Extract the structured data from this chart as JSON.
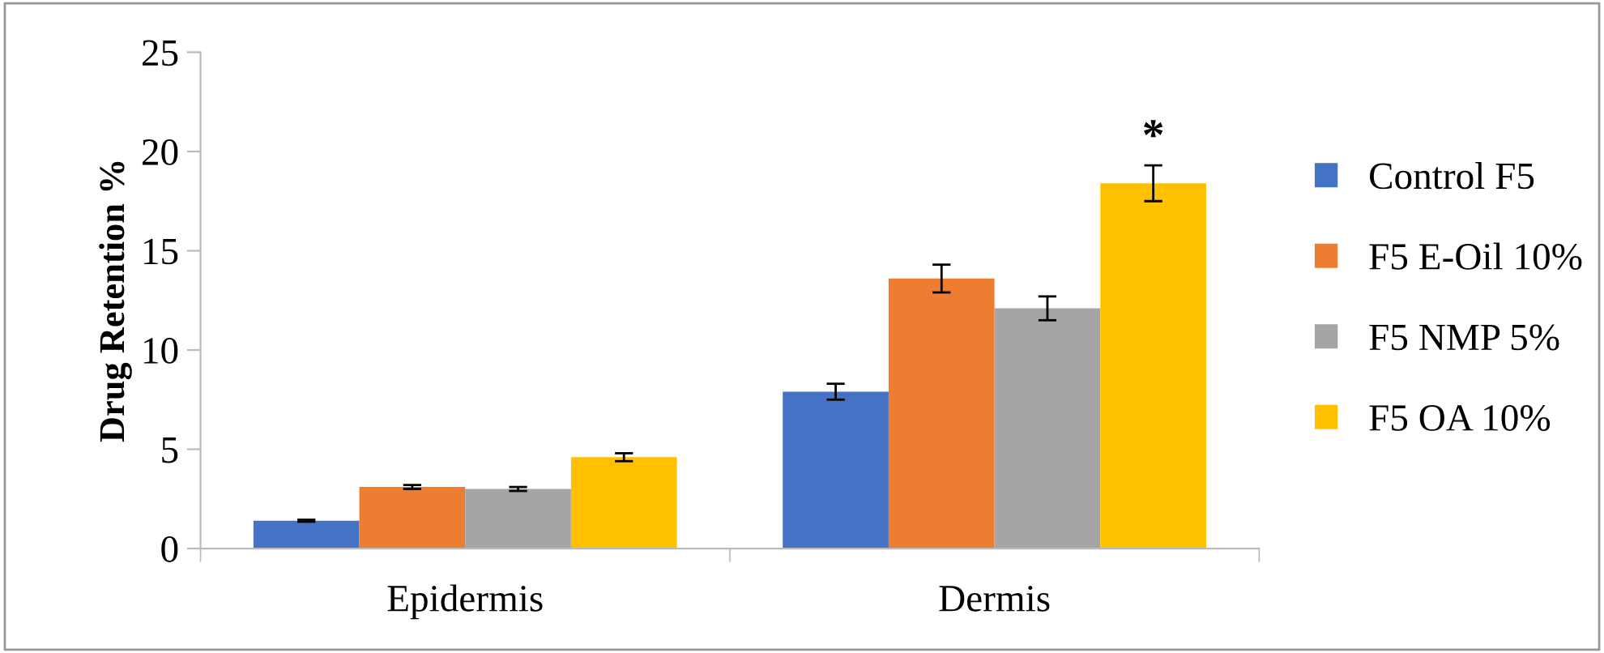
{
  "chart_data": {
    "type": "bar",
    "ylabel": "Drug Retention %",
    "categories": [
      "Epidermis",
      "Dermis"
    ],
    "series": [
      {
        "name": "Control F5",
        "color": "#4472c4",
        "values": [
          1.4,
          7.9
        ],
        "errors": [
          0.05,
          0.4
        ]
      },
      {
        "name": "F5 E-Oil 10%",
        "color": "#ed7d31",
        "values": [
          3.1,
          13.6
        ],
        "errors": [
          0.1,
          0.7
        ]
      },
      {
        "name": "F5 NMP 5%",
        "color": "#a5a5a5",
        "values": [
          3.0,
          12.1
        ],
        "errors": [
          0.1,
          0.6
        ]
      },
      {
        "name": "F5 OA 10%",
        "color": "#ffc000",
        "values": [
          4.6,
          18.4
        ],
        "errors": [
          0.2,
          0.9
        ]
      }
    ],
    "annotations": [
      "*"
    ],
    "ylim": [
      0,
      25
    ],
    "yticks": [
      0,
      5,
      10,
      15,
      20,
      25
    ],
    "grid": false,
    "legend": "right"
  }
}
